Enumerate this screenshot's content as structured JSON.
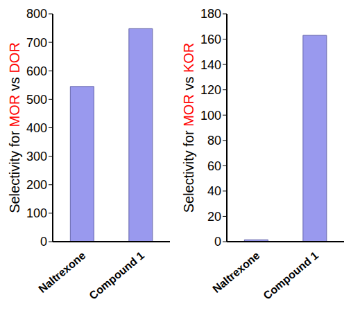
{
  "chart_data": [
    {
      "type": "bar",
      "ylabel": [
        {
          "text": "Selectivity for ",
          "color": "#000000"
        },
        {
          "text": "MOR",
          "color": "#ff0000"
        },
        {
          "text": " vs ",
          "color": "#000000"
        },
        {
          "text": "DOR",
          "color": "#ff0000"
        }
      ],
      "categories": [
        "Naltrexone",
        "Compound 1"
      ],
      "values": [
        545,
        748
      ],
      "color": "#9999ee",
      "ylim": [
        0,
        800
      ],
      "yticks": [
        0,
        100,
        200,
        300,
        400,
        500,
        600,
        700,
        800
      ]
    },
    {
      "type": "bar",
      "ylabel": [
        {
          "text": "Selectivity for ",
          "color": "#000000"
        },
        {
          "text": "MOR",
          "color": "#ff0000"
        },
        {
          "text": " vs ",
          "color": "#000000"
        },
        {
          "text": "KOR",
          "color": "#ff0000"
        }
      ],
      "categories": [
        "Naltrexone",
        "Compound 1"
      ],
      "values": [
        1.5,
        163
      ],
      "color": "#9999ee",
      "ylim": [
        0,
        180
      ],
      "yticks": [
        0,
        20,
        40,
        60,
        80,
        100,
        120,
        140,
        160,
        180
      ]
    }
  ]
}
